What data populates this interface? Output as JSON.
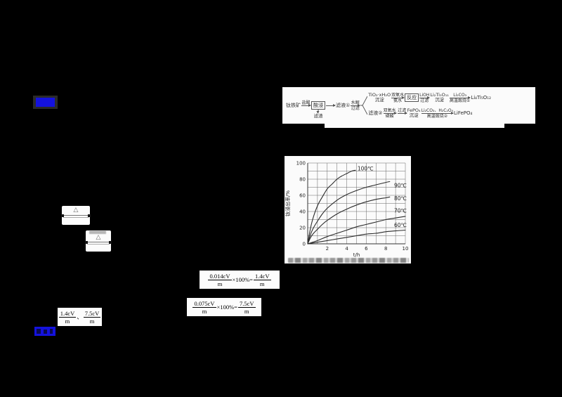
{
  "colors": {
    "background": "#000000",
    "highlight_blue": "#1412dd",
    "panel_white": "#fbfbfb",
    "ink": "#2c2c2c"
  },
  "flowchart": {
    "start": "钛铁矿",
    "arrow1_top": "盐酸",
    "leach_box": "酸浸",
    "residue_label": "滤渣",
    "filtrate1": "滤液①",
    "arrow2_top": "水解",
    "arrow2_bottom": "过滤",
    "branch_top": {
      "node1_line1": "TiO₂·xH₂O",
      "node1_line2": "沉淀",
      "arrow1_top": "双氧水",
      "arrow1_bottom": "氨水",
      "reaction_box": "反应",
      "arrow2_top": "LiOH",
      "arrow2_bottom": "过滤",
      "node2_line1": "Li₂Ti₅O₁₁",
      "node2_line2": "沉淀",
      "arrow3_top": "Li₂CO₃",
      "arrow3_bottom": "高温煅烧①",
      "product": "Li₄Ti₅O₁₂"
    },
    "branch_bottom": {
      "node1": "滤液②",
      "arrow1_top": "双氧水",
      "arrow1_bottom": "磷酸",
      "arrow2_top": "过滤",
      "node2_line1": "FePO₄",
      "node2_line2": "沉淀",
      "arrow3_top": "Li₂CO₃、H₂C₂O₄",
      "arrow3_bottom": "高温煅烧②",
      "product": "LiFePO₄"
    }
  },
  "chart_data": {
    "type": "line",
    "title": "",
    "xlabel": "t/h",
    "ylabel": "钛浸出率/%",
    "xlim": [
      0,
      10
    ],
    "ylim": [
      0,
      100
    ],
    "xticks": [
      2,
      4,
      6,
      8,
      10
    ],
    "yticks": [
      0,
      20,
      40,
      60,
      80,
      100
    ],
    "grid": true,
    "legend_position": "inline-right",
    "series": [
      {
        "name": "100℃",
        "label_xy": [
          5.1,
          93
        ],
        "points": [
          [
            0,
            0
          ],
          [
            0.2,
            14
          ],
          [
            0.5,
            30
          ],
          [
            1,
            47
          ],
          [
            1.5,
            58
          ],
          [
            2,
            68
          ],
          [
            2.5,
            74
          ],
          [
            3,
            80
          ],
          [
            3.5,
            84
          ],
          [
            4,
            87
          ],
          [
            4.5,
            90
          ],
          [
            4.9,
            91
          ]
        ]
      },
      {
        "name": "90℃",
        "label_xy": [
          8.85,
          72
        ],
        "points": [
          [
            0,
            0
          ],
          [
            0.3,
            12
          ],
          [
            0.6,
            20
          ],
          [
            1,
            28
          ],
          [
            1.5,
            37
          ],
          [
            2,
            44
          ],
          [
            3,
            54
          ],
          [
            4,
            61
          ],
          [
            5,
            66
          ],
          [
            6,
            70
          ],
          [
            7,
            73
          ],
          [
            8,
            76
          ],
          [
            8.4,
            77
          ]
        ]
      },
      {
        "name": "80℃",
        "label_xy": [
          8.85,
          56
        ],
        "points": [
          [
            0,
            0
          ],
          [
            0.3,
            8
          ],
          [
            0.6,
            13
          ],
          [
            1,
            18
          ],
          [
            1.5,
            24
          ],
          [
            2,
            29
          ],
          [
            3,
            37
          ],
          [
            4,
            43
          ],
          [
            5,
            48
          ],
          [
            6,
            52
          ],
          [
            7,
            55
          ],
          [
            8,
            57
          ],
          [
            8.4,
            58
          ]
        ]
      },
      {
        "name": "70℃",
        "label_xy": [
          8.85,
          41
        ],
        "points": [
          [
            0,
            0
          ],
          [
            1,
            4
          ],
          [
            2,
            9
          ],
          [
            3,
            13
          ],
          [
            4,
            17
          ],
          [
            5,
            21
          ],
          [
            6,
            24
          ],
          [
            7,
            27
          ],
          [
            8,
            30
          ],
          [
            9,
            32
          ],
          [
            10,
            34
          ]
        ]
      },
      {
        "name": "60℃",
        "label_xy": [
          8.85,
          23
        ],
        "points": [
          [
            0,
            0
          ],
          [
            1,
            2
          ],
          [
            2,
            4
          ],
          [
            3,
            6
          ],
          [
            4,
            8
          ],
          [
            5,
            10
          ],
          [
            6,
            12
          ],
          [
            7,
            13
          ],
          [
            8,
            15
          ],
          [
            9,
            16
          ],
          [
            10,
            17
          ]
        ]
      }
    ]
  },
  "equation_fragments": {
    "symbol": "△"
  },
  "formulas": {
    "calc1": {
      "num1": "0.014cV",
      "den1": "m",
      "middle": "×100%=",
      "num2": "1.4cV",
      "den2": "m"
    },
    "calc2": {
      "num1": "0.075cV",
      "den1": "m",
      "middle": "×100%=",
      "num2": "7.5cV",
      "den2": "m"
    },
    "result_pair": {
      "num1": "1.4cV",
      "den1": "m",
      "separator": "、",
      "num2": "7.5cV",
      "den2": "m"
    }
  }
}
